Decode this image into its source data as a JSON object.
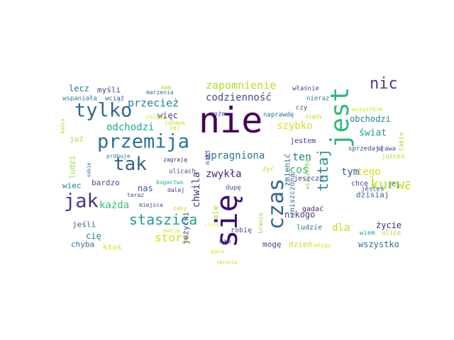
{
  "words": [
    {
      "text": "nie",
      "color": "#440154"
    },
    {
      "text": "się",
      "color": "#3b0f70"
    },
    {
      "text": "jest",
      "color": "#35b779"
    },
    {
      "text": "czas",
      "color": "#31688e"
    },
    {
      "text": "tylko",
      "color": "#31688e"
    },
    {
      "text": "przemija",
      "color": "#2c728e"
    },
    {
      "text": "tak",
      "color": "#355f8d"
    },
    {
      "text": "jak",
      "color": "#443983"
    },
    {
      "text": "nic",
      "color": "#414487"
    },
    {
      "text": "tutaj",
      "color": "#21918c"
    },
    {
      "text": "kurwa",
      "color": "#bddf26"
    },
    {
      "text": "staszica",
      "color": "#1f9e89"
    },
    {
      "text": "story",
      "color": "#c8e020"
    },
    {
      "text": "zapomnienie",
      "color": "#b5de2b"
    },
    {
      "text": "codzienność",
      "color": "#3e4a89"
    },
    {
      "text": "przecież",
      "color": "#26828e"
    },
    {
      "text": "odchodzi",
      "color": "#22a884"
    },
    {
      "text": "upragniona",
      "color": "#2a788e"
    },
    {
      "text": "ten",
      "color": "#277f8e"
    },
    {
      "text": "coś",
      "color": "#3bbb75"
    },
    {
      "text": "zwykła",
      "color": "#482677"
    },
    {
      "text": "chwila",
      "color": "#46337e"
    },
    {
      "text": "każda",
      "color": "#3fbc73"
    },
    {
      "text": "szybko",
      "color": "#cde11d"
    },
    {
      "text": "świat",
      "color": "#1f9a8a"
    },
    {
      "text": "obchodzi",
      "color": "#25848e"
    },
    {
      "text": "tym",
      "color": "#365c8d"
    },
    {
      "text": "tego",
      "color": "#d2e21b"
    },
    {
      "text": "dla",
      "color": "#c2df23"
    },
    {
      "text": "życie",
      "color": "#482878"
    },
    {
      "text": "wszystko",
      "color": "#2c728e"
    },
    {
      "text": "nikogo",
      "color": "#443a83"
    },
    {
      "text": "lecz",
      "color": "#2a788e"
    },
    {
      "text": "myśli",
      "color": "#424086"
    },
    {
      "text": "więc",
      "color": "#3f4788"
    },
    {
      "text": "już",
      "color": "#a8db34"
    },
    {
      "text": "ludzi",
      "color": "#9bd93c"
    },
    {
      "text": "wiec",
      "color": "#2c728e"
    },
    {
      "text": "bardzo",
      "color": "#3e4989"
    },
    {
      "text": "nas",
      "color": "#38598c"
    },
    {
      "text": "cię",
      "color": "#27808e"
    },
    {
      "text": "chyba",
      "color": "#2f6c8e"
    },
    {
      "text": "ktoś",
      "color": "#d8e219"
    },
    {
      "text": "jeśli",
      "color": "#34618d"
    },
    {
      "text": "jeżycki",
      "color": "#404688"
    },
    {
      "text": "ale",
      "color": "#a0da39"
    },
    {
      "text": "mogę",
      "color": "#404588"
    },
    {
      "text": "dzień",
      "color": "#c0df25"
    },
    {
      "text": "mózgu",
      "color": "#dae319"
    },
    {
      "text": "ludzie",
      "color": "#2e6f8e"
    },
    {
      "text": "dzisiaj",
      "color": "#33638d"
    },
    {
      "text": "wiem",
      "color": "#1fa188"
    },
    {
      "text": "ulice",
      "color": "#a5db36"
    },
    {
      "text": "jesteś",
      "color": "#3b528b"
    },
    {
      "text": "jeszcze",
      "color": "#453781"
    },
    {
      "text": "chcę",
      "color": "#433e85"
    },
    {
      "text": "jej",
      "color": "#2d708e"
    },
    {
      "text": "gadać",
      "color": "#481f70"
    },
    {
      "text": "robię",
      "color": "#3b528b"
    },
    {
      "text": "branża",
      "color": "#8fd744"
    },
    {
      "text": "born",
      "color": "#d0e11c"
    },
    {
      "text": "czuje",
      "color": "#f1e51d"
    },
    {
      "text": "nam",
      "color": "#453882"
    },
    {
      "text": "dupę",
      "color": "#3c4f8a"
    },
    {
      "text": "żyć",
      "color": "#b2dd2d"
    },
    {
      "text": "zmienić",
      "color": "#33638d"
    },
    {
      "text": "zniszczona",
      "color": "#2f6b8e"
    },
    {
      "text": "nikt",
      "color": "#453781"
    },
    {
      "text": "wszystkie",
      "color": "#7ad151"
    },
    {
      "text": "jestem",
      "color": "#472d7b"
    },
    {
      "text": "sprzedają",
      "color": "#404588"
    },
    {
      "text": "sława",
      "color": "#3b528b"
    },
    {
      "text": "juices",
      "color": "#b0dd2f"
    },
    {
      "text": "takie",
      "color": "#a2da37"
    },
    {
      "text": "może",
      "color": "#3e4989"
    },
    {
      "text": "naprawdę",
      "color": "#2d708e"
    },
    {
      "text": "czy",
      "color": "#3d4e8a"
    },
    {
      "text": "nigdy",
      "color": "#c5e021"
    },
    {
      "text": "nieraz",
      "color": "#2b748e"
    },
    {
      "text": "wszystkim",
      "color": "#d5e21a"
    },
    {
      "text": "właśnie",
      "color": "#404688"
    },
    {
      "text": "mam",
      "color": "#addc30"
    },
    {
      "text": "marzenia",
      "color": "#2d708e"
    },
    {
      "text": "wspaniała",
      "color": "#2b758e"
    },
    {
      "text": "wciąż",
      "color": "#3a548c"
    },
    {
      "text": "chcesz",
      "color": "#dde318"
    },
    {
      "text": "zabawa",
      "color": "#c8e020"
    },
    {
      "text": "tej",
      "color": "#bade28"
    },
    {
      "text": "końca",
      "color": "#a2da37"
    },
    {
      "text": "sobie",
      "color": "#34618d"
    },
    {
      "text": "próbuje",
      "color": "#2a768e"
    },
    {
      "text": "zagrają",
      "color": "#482071"
    },
    {
      "text": "ulicach",
      "color": "#3d4d8a"
    },
    {
      "text": "teraz",
      "color": "#404688"
    },
    {
      "text": "bogactwo",
      "color": "#27ad81"
    },
    {
      "text": "dalej",
      "color": "#443983"
    },
    {
      "text": "miejsca",
      "color": "#3e4989"
    },
    {
      "text": "żeby",
      "color": "#c2df23"
    },
    {
      "text": "swoją",
      "color": "#d0e11c"
    },
    {
      "text": "zmienia",
      "color": "#bddf26"
    }
  ]
}
